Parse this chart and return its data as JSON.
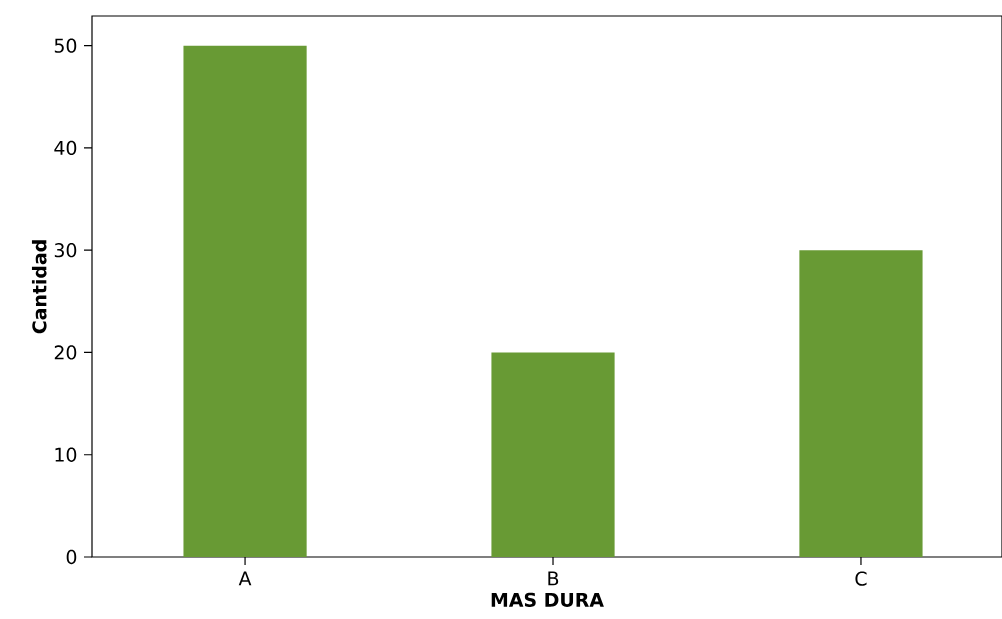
{
  "chart_data": {
    "type": "bar",
    "xlabel": "MAS DURA",
    "ylabel": "Cantidad",
    "categories": [
      "A",
      "B",
      "C"
    ],
    "values": [
      50,
      20,
      30
    ],
    "color": "#689a34",
    "ylim": [
      0,
      52.9
    ],
    "yticks": [
      0,
      10,
      20,
      30,
      40,
      50
    ]
  }
}
